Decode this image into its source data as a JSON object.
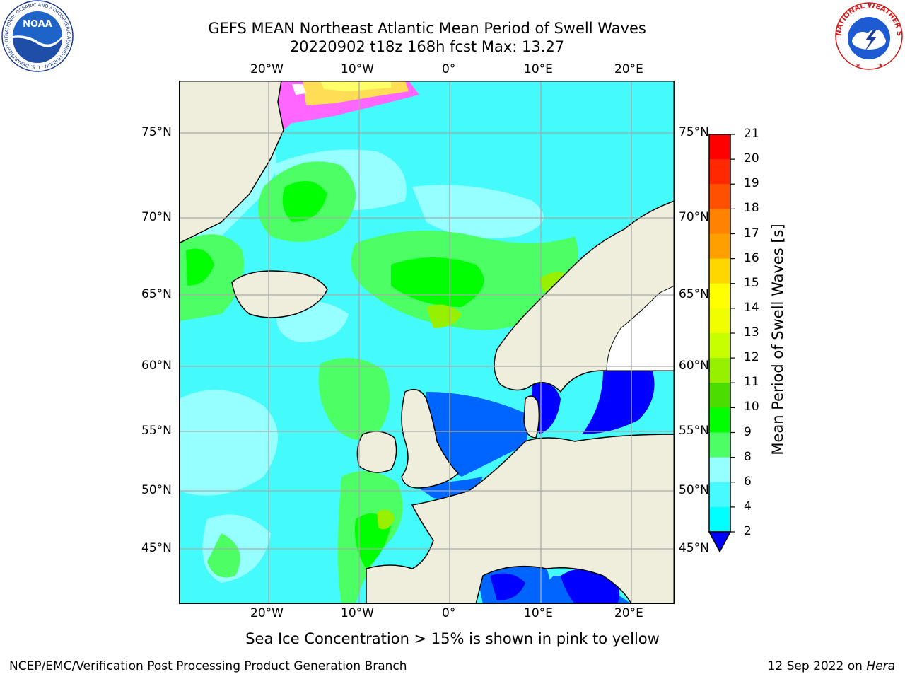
{
  "header": {
    "title_line1": "GEFS MEAN Northeast Atlantic Mean Period of Swell Waves",
    "title_line2": "20220902 t18z 168h fcst   Max: 13.27"
  },
  "logos": {
    "noaa_label": "NOAA",
    "noaa_ring_text": "NATIONAL OCEANIC AND ATMOSPHERIC ADMINISTRATION · U.S. DEPARTMENT OF COMMERCE",
    "nws_ring_text": "NATIONAL WEATHER SERVICE"
  },
  "map": {
    "lon_labels": [
      "20°W",
      "10°W",
      "0°",
      "10°E",
      "20°E"
    ],
    "lat_labels": [
      "75°N",
      "70°N",
      "65°N",
      "60°N",
      "55°N",
      "50°N",
      "45°N"
    ],
    "colors": {
      "land": "#efeedc",
      "ocean_base": "#45fafa",
      "grid": "#aaaaaa"
    }
  },
  "colorbar": {
    "label": "Mean Period of Swell Waves [s]",
    "ticks": [
      "2",
      "4",
      "6",
      "8",
      "9",
      "10",
      "11",
      "12",
      "13",
      "14",
      "15",
      "16",
      "17",
      "18",
      "19",
      "20",
      "21"
    ],
    "colors": [
      "#0064ff",
      "#00c8ff",
      "#00ffff",
      "#46faff",
      "#96ffff",
      "#4bff64",
      "#00ff00",
      "#4bdc00",
      "#96f000",
      "#c8ff00",
      "#f0ff00",
      "#ffff00",
      "#ffd700",
      "#ffa000",
      "#ff8200",
      "#ff5000",
      "#ff2800",
      "#ff0000"
    ],
    "under_color": "#0000ff"
  },
  "notes": {
    "sea_ice": "Sea Ice Concentration > 15% is shown in pink to yellow"
  },
  "footer": {
    "left": "NCEP/EMC/Verification Post Processing Product Generation Branch",
    "date": "12 Sep 2022 on ",
    "machine": "Hera"
  }
}
